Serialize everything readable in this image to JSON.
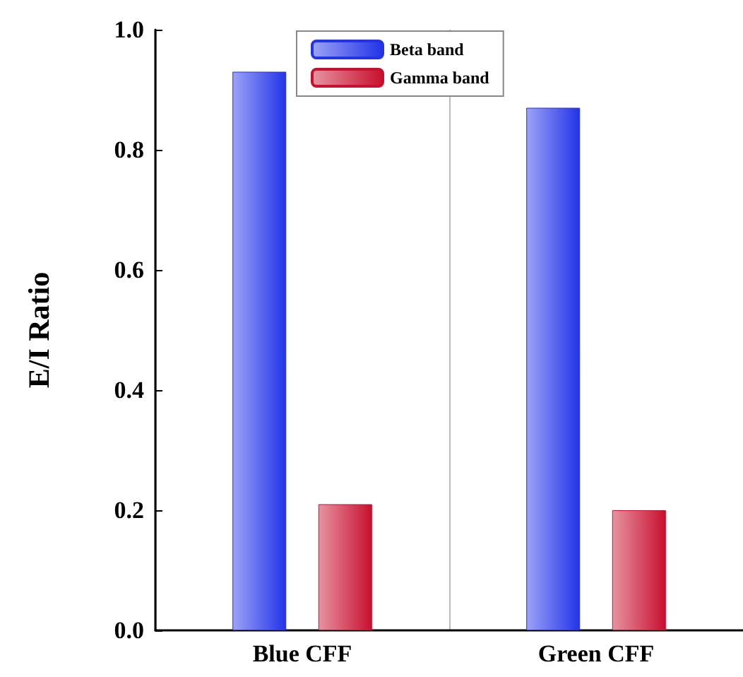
{
  "chart_data": {
    "type": "bar",
    "ylabel": "E/I Ratio",
    "categories": [
      "Blue CFF",
      "Green CFF"
    ],
    "series": [
      {
        "name": "Beta band",
        "color": "#2233e8",
        "values": [
          0.93,
          0.87
        ]
      },
      {
        "name": "Gamma band",
        "color": "#c8102e",
        "values": [
          0.21,
          0.2
        ]
      }
    ],
    "ylim": [
      0,
      1
    ],
    "yticks": [
      {
        "value": 0,
        "label": "0.0"
      },
      {
        "value": 0.2,
        "label": "0.2"
      },
      {
        "value": 0.4,
        "label": "0.4"
      },
      {
        "value": 0.6,
        "label": "0.6"
      },
      {
        "value": 0.8,
        "label": "0.8"
      },
      {
        "value": 1,
        "label": "1.0"
      }
    ],
    "grid": "x",
    "legend": "top"
  }
}
